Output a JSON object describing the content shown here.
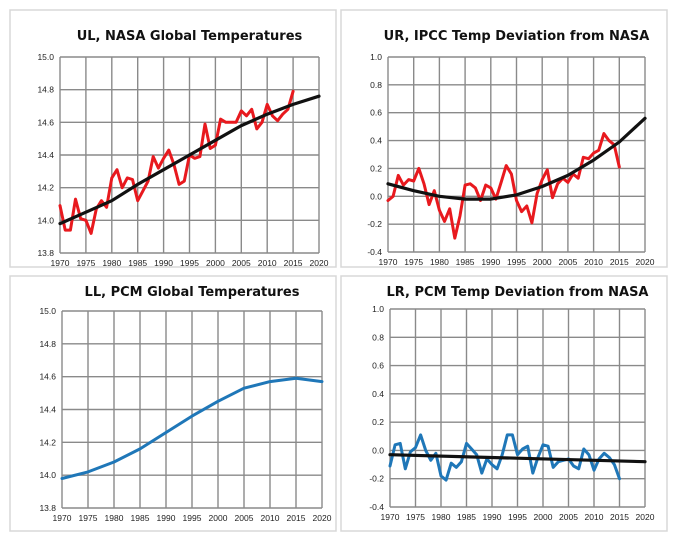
{
  "chart_data": [
    {
      "id": "UL",
      "type": "line",
      "title": "UL, NASA Global Temperatures",
      "xlim": [
        1970,
        2020
      ],
      "ylim": [
        13.8,
        15.0
      ],
      "xticks": [
        "1970",
        "1975",
        "1980",
        "1985",
        "1990",
        "1995",
        "2000",
        "2005",
        "2010",
        "2015",
        "2020"
      ],
      "yticks": [
        "13.8",
        "14.0",
        "14.2",
        "14.4",
        "14.6",
        "14.8",
        "15.0"
      ],
      "grid": true,
      "series": [
        {
          "color": "#e8191e",
          "x_start": 1970,
          "values": [
            14.09,
            13.94,
            13.94,
            14.13,
            14.01,
            14.0,
            13.92,
            14.07,
            14.12,
            14.08,
            14.26,
            14.31,
            14.2,
            14.26,
            14.25,
            14.12,
            14.18,
            14.24,
            14.39,
            14.32,
            14.38,
            14.43,
            14.34,
            14.22,
            14.24,
            14.4,
            14.38,
            14.39,
            14.59,
            14.44,
            14.46,
            14.62,
            14.6,
            14.6,
            14.6,
            14.67,
            14.64,
            14.68,
            14.56,
            14.6,
            14.71,
            14.64,
            14.61,
            14.65,
            14.68,
            14.79
          ]
        },
        {
          "color": "#111111",
          "trend": true,
          "x": [
            1970,
            1975,
            1980,
            1985,
            1990,
            1995,
            2000,
            2005,
            2010,
            2015,
            2020
          ],
          "values": [
            13.98,
            14.05,
            14.12,
            14.22,
            14.31,
            14.4,
            14.49,
            14.58,
            14.65,
            14.71,
            14.76
          ]
        }
      ]
    },
    {
      "id": "UR",
      "type": "line",
      "title": "UR, IPCC Temp Deviation from NASA",
      "xlim": [
        1970,
        2020
      ],
      "ylim": [
        -0.4,
        1.0
      ],
      "xticks": [
        "1970",
        "1975",
        "1980",
        "1985",
        "1990",
        "1995",
        "2000",
        "2005",
        "2010",
        "2015",
        "2020"
      ],
      "yticks": [
        "-0.4",
        "-0.2",
        "0.0",
        "0.2",
        "0.4",
        "0.6",
        "0.8",
        "1.0"
      ],
      "grid": true,
      "series": [
        {
          "color": "#e8191e",
          "x_start": 1970,
          "values": [
            -0.03,
            0.0,
            0.15,
            0.08,
            0.12,
            0.11,
            0.2,
            0.09,
            -0.06,
            0.04,
            -0.1,
            -0.18,
            -0.09,
            -0.3,
            -0.14,
            0.08,
            0.09,
            0.06,
            -0.03,
            0.08,
            0.06,
            -0.02,
            0.1,
            0.22,
            0.16,
            -0.03,
            -0.11,
            -0.07,
            -0.19,
            0.02,
            0.12,
            0.19,
            -0.01,
            0.09,
            0.13,
            0.1,
            0.16,
            0.13,
            0.28,
            0.27,
            0.31,
            0.33,
            0.45,
            0.4,
            0.37,
            0.21
          ]
        },
        {
          "color": "#111111",
          "trend": true,
          "x": [
            1970,
            1975,
            1980,
            1985,
            1990,
            1995,
            2000,
            2005,
            2010,
            2015,
            2020
          ],
          "values": [
            0.09,
            0.04,
            0.0,
            -0.02,
            -0.02,
            0.01,
            0.07,
            0.15,
            0.26,
            0.39,
            0.56
          ]
        }
      ]
    },
    {
      "id": "LL",
      "type": "line",
      "title": "LL, PCM Global Temperatures",
      "xlim": [
        1970,
        2020
      ],
      "ylim": [
        13.8,
        15.0
      ],
      "xticks": [
        "1970",
        "1975",
        "1980",
        "1985",
        "1990",
        "1995",
        "2000",
        "2005",
        "2010",
        "2015",
        "2020"
      ],
      "yticks": [
        "13.8",
        "14.0",
        "14.2",
        "14.4",
        "14.6",
        "14.8",
        "15.0"
      ],
      "grid": true,
      "series": [
        {
          "color": "#1f77b8",
          "x": [
            1970,
            1975,
            1980,
            1985,
            1990,
            1995,
            2000,
            2005,
            2010,
            2015,
            2020
          ],
          "values": [
            13.98,
            14.02,
            14.08,
            14.16,
            14.26,
            14.36,
            14.45,
            14.53,
            14.57,
            14.59,
            14.57
          ]
        }
      ]
    },
    {
      "id": "LR",
      "type": "line",
      "title": "LR, PCM Temp Deviation from NASA",
      "xlim": [
        1970,
        2020
      ],
      "ylim": [
        -0.4,
        1.0
      ],
      "xticks": [
        "1970",
        "1975",
        "1980",
        "1985",
        "1990",
        "1995",
        "2000",
        "2005",
        "2010",
        "2015",
        "2020"
      ],
      "yticks": [
        "-0.4",
        "-0.2",
        "0.0",
        "0.2",
        "0.4",
        "0.6",
        "0.8",
        "1.0"
      ],
      "grid": true,
      "series": [
        {
          "color": "#1f77b8",
          "x_start": 1970,
          "values": [
            -0.11,
            0.04,
            0.05,
            -0.13,
            -0.01,
            0.02,
            0.11,
            0.0,
            -0.07,
            -0.02,
            -0.18,
            -0.21,
            -0.09,
            -0.12,
            -0.08,
            0.05,
            0.01,
            -0.03,
            -0.16,
            -0.06,
            -0.1,
            -0.13,
            -0.03,
            0.11,
            0.11,
            -0.03,
            0.01,
            0.03,
            -0.16,
            -0.05,
            0.04,
            0.03,
            -0.12,
            -0.08,
            -0.07,
            -0.06,
            -0.11,
            -0.13,
            0.01,
            -0.03,
            -0.14,
            -0.06,
            -0.02,
            -0.05,
            -0.1,
            -0.2
          ]
        },
        {
          "color": "#111111",
          "trend": true,
          "x": [
            1970,
            2020
          ],
          "values": [
            -0.03,
            -0.08
          ]
        }
      ]
    }
  ]
}
